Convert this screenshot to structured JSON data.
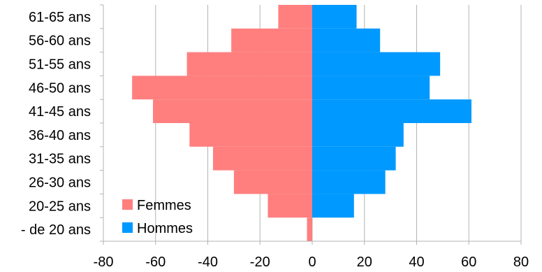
{
  "chart_data": {
    "type": "bar",
    "orientation": "horizontal",
    "categories": [
      "61-65 ans",
      "56-60 ans",
      "51-55 ans",
      "46-50 ans",
      "41-45 ans",
      "36-40 ans",
      "31-35 ans",
      "26-30 ans",
      "20-25 ans",
      "- de 20 ans"
    ],
    "series": [
      {
        "name": "Femmes",
        "color": "#ff7f7f",
        "values": [
          -13,
          -31,
          -48,
          -69,
          -61,
          -47,
          -38,
          -30,
          -17,
          -2
        ]
      },
      {
        "name": "Hommes",
        "color": "#0099ff",
        "values": [
          17,
          26,
          49,
          45,
          61,
          35,
          32,
          28,
          16,
          0
        ]
      }
    ],
    "x_ticks": [
      "-80",
      "-60",
      "-40",
      "-20",
      "0",
      "20",
      "40",
      "60",
      "80"
    ],
    "xlim": [
      -80,
      80
    ],
    "grid": "vertical",
    "legend_position": "bottom-left",
    "title": "",
    "xlabel": "",
    "ylabel": ""
  }
}
